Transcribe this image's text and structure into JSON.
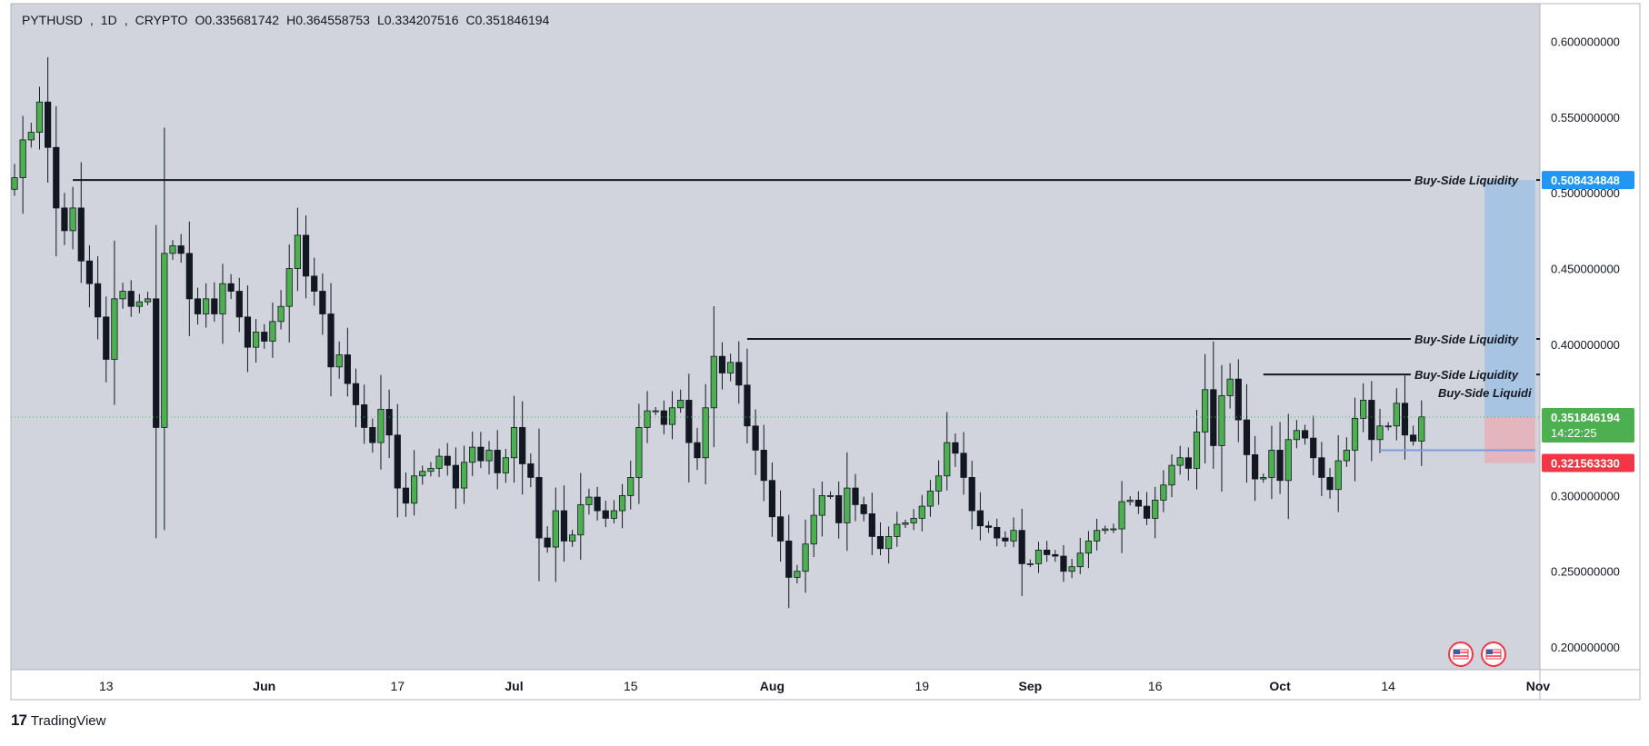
{
  "header": {
    "symbol": "PYTHUSD",
    "interval": "1D",
    "exchange": "CRYPTO",
    "open": "O0.335681742",
    "high": "H0.364558753",
    "low": "L0.334207516",
    "close": "C0.351846194"
  },
  "brand": {
    "name": "TradingView"
  },
  "colors": {
    "background": "#d1d4dc",
    "up": "#4caf50",
    "down": "#131722",
    "target_zone": "#a7c5e3",
    "stop_zone": "#e3b6bd",
    "price_label": "#4caf50",
    "target_label": "#2196f3",
    "stop_label": "#f23645"
  },
  "chart_data": {
    "type": "candlestick",
    "title": "",
    "y_ticks": [
      "0.600000000",
      "0.550000000",
      "0.500000000",
      "0.450000000",
      "0.400000000",
      "0.350000000",
      "0.300000000",
      "0.250000000",
      "0.200000000"
    ],
    "y_tick_values": [
      0.6,
      0.55,
      0.5,
      0.45,
      0.4,
      0.35,
      0.3,
      0.25,
      0.2
    ],
    "ylim": [
      0.185,
      0.625
    ],
    "x_ticks": [
      {
        "label": "13",
        "date": "2024-05-13"
      },
      {
        "label": "Jun",
        "date": "2024-06-01"
      },
      {
        "label": "17",
        "date": "2024-06-17"
      },
      {
        "label": "Jul",
        "date": "2024-07-01"
      },
      {
        "label": "15",
        "date": "2024-07-15"
      },
      {
        "label": "Aug",
        "date": "2024-08-01"
      },
      {
        "label": "19",
        "date": "2024-08-19"
      },
      {
        "label": "Sep",
        "date": "2024-09-01"
      },
      {
        "label": "16",
        "date": "2024-09-16"
      },
      {
        "label": "Oct",
        "date": "2024-10-01"
      },
      {
        "label": "14",
        "date": "2024-10-14"
      },
      {
        "label": "Nov",
        "date": "2024-11-01"
      }
    ],
    "x_range": [
      "2024-05-02",
      "2024-11-01"
    ],
    "series_start": "2024-05-02",
    "series_end": "2024-10-27",
    "closes": [
      0.51,
      0.535,
      0.54,
      0.56,
      0.53,
      0.49,
      0.475,
      0.49,
      0.455,
      0.44,
      0.418,
      0.39,
      0.43,
      0.435,
      0.425,
      0.428,
      0.43,
      0.345,
      0.46,
      0.465,
      0.46,
      0.43,
      0.42,
      0.43,
      0.42,
      0.44,
      0.435,
      0.418,
      0.398,
      0.408,
      0.402,
      0.415,
      0.425,
      0.45,
      0.472,
      0.445,
      0.435,
      0.42,
      0.385,
      0.393,
      0.374,
      0.36,
      0.345,
      0.335,
      0.357,
      0.34,
      0.305,
      0.295,
      0.313,
      0.316,
      0.318,
      0.326,
      0.32,
      0.305,
      0.322,
      0.332,
      0.323,
      0.33,
      0.315,
      0.325,
      0.345,
      0.321,
      0.312,
      0.272,
      0.266,
      0.29,
      0.27,
      0.274,
      0.294,
      0.299,
      0.29,
      0.285,
      0.29,
      0.3,
      0.312,
      0.345,
      0.356,
      0.356,
      0.347,
      0.358,
      0.363,
      0.335,
      0.325,
      0.358,
      0.392,
      0.381,
      0.388,
      0.373,
      0.346,
      0.33,
      0.31,
      0.286,
      0.27,
      0.246,
      0.25,
      0.268,
      0.287,
      0.3,
      0.3,
      0.282,
      0.305,
      0.294,
      0.288,
      0.273,
      0.265,
      0.273,
      0.281,
      0.282,
      0.285,
      0.293,
      0.303,
      0.313,
      0.335,
      0.328,
      0.312,
      0.29,
      0.28,
      0.279,
      0.272,
      0.27,
      0.277,
      0.255,
      0.255,
      0.264,
      0.261,
      0.26,
      0.25,
      0.253,
      0.262,
      0.27,
      0.277,
      0.278,
      0.278,
      0.296,
      0.297,
      0.293,
      0.285,
      0.297,
      0.307,
      0.32,
      0.325,
      0.318,
      0.342,
      0.37,
      0.333,
      0.366,
      0.377,
      0.35,
      0.327,
      0.311,
      0.312,
      0.33,
      0.31,
      0.337,
      0.343,
      0.338,
      0.325,
      0.312,
      0.304,
      0.323,
      0.33,
      0.351,
      0.363,
      0.337,
      0.346,
      0.346,
      0.361,
      0.34,
      0.336,
      0.352
    ],
    "annotations": {
      "horizontal_lines": [
        {
          "label": "Buy-Side Liquidity",
          "price": 0.5085,
          "from": "2024-05-09"
        },
        {
          "label": "Buy-Side Liquidity",
          "price": 0.4035,
          "from": "2024-07-29"
        },
        {
          "label": "Buy-Side Liquidity",
          "price": 0.38,
          "from": "2024-09-29"
        },
        {
          "label": "Buy-Side Liquidi",
          "price": 0.368,
          "from": "2024-10-26"
        }
      ],
      "position": {
        "type": "long",
        "entry": 0.351846194,
        "target": 0.508434848,
        "stop": 0.32156333,
        "from": "2024-10-26",
        "to": "2024-10-31"
      },
      "support_line": {
        "price": 0.33,
        "from": "2024-10-13",
        "to": "2024-10-31"
      }
    },
    "price_labels": {
      "target": "0.508434848",
      "last": "0.351846194",
      "countdown": "14:22:25",
      "stop": "0.321563330"
    }
  }
}
